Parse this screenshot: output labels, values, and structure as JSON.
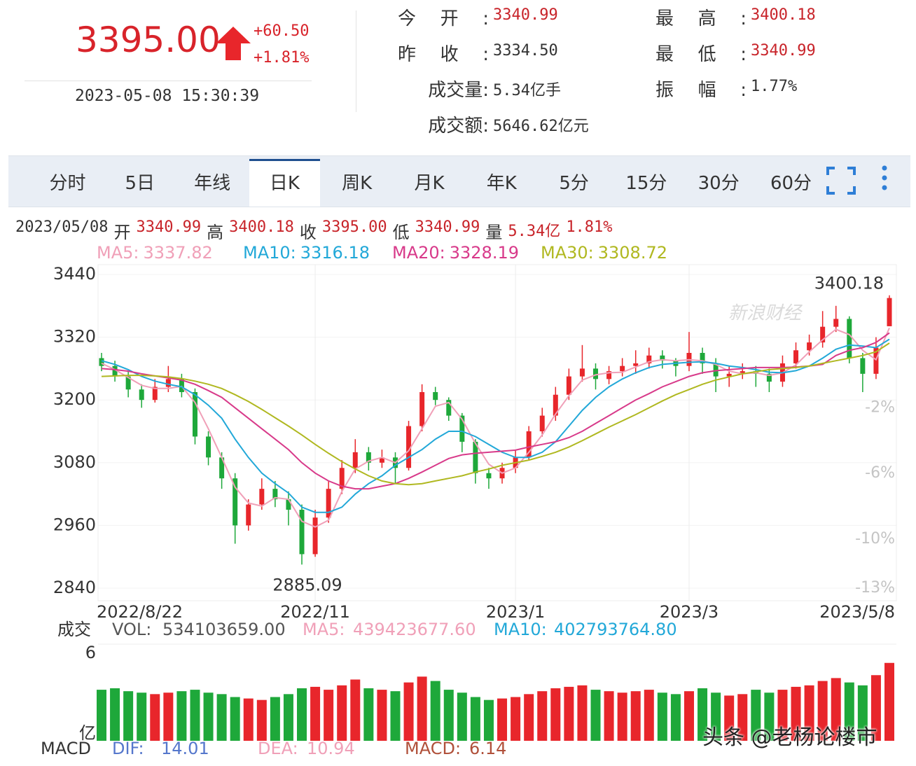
{
  "quote": {
    "price": "3395.00",
    "change": "+60.50",
    "change_pct": "+1.81%",
    "time": "2023-05-08 15:30:39",
    "color": "#d8232a"
  },
  "stats": [
    {
      "label": "今开:",
      "value": "3340.99",
      "color": "#c8242a"
    },
    {
      "label": "昨收:",
      "value": "3334.50",
      "color": "#333333"
    },
    {
      "label": "成交量:",
      "value": "5.34亿手",
      "color": "#333333"
    },
    {
      "label": "成交额:",
      "value": "5646.62亿元",
      "color": "#333333"
    },
    {
      "label": "最高:",
      "value": "3400.18",
      "color": "#c8242a"
    },
    {
      "label": "最低:",
      "value": "3340.99",
      "color": "#c8242a"
    },
    {
      "label": "振幅:",
      "value": "1.77%",
      "color": "#333333"
    }
  ],
  "tabs": [
    "分时",
    "5日",
    "年线",
    "日K",
    "周K",
    "月K",
    "年K",
    "5分",
    "15分",
    "30分",
    "60分"
  ],
  "active_tab": 3,
  "ohlc_line": {
    "date": "2023/05/08",
    "items": [
      {
        "label": "开",
        "value": "3340.99"
      },
      {
        "label": "高",
        "value": "3400.18"
      },
      {
        "label": "收",
        "value": "3395.00"
      },
      {
        "label": "低",
        "value": "3340.99"
      },
      {
        "label": "量",
        "value": "5.34亿"
      }
    ],
    "pct": "1.81%"
  },
  "chart_data": [
    {
      "type": "candlestick",
      "categories": [
        "2022/8/22",
        null,
        null,
        null,
        null,
        null,
        null,
        null,
        null,
        null,
        null,
        null,
        null,
        null,
        null,
        null,
        "2022/11",
        null,
        null,
        null,
        null,
        null,
        null,
        null,
        null,
        null,
        null,
        null,
        null,
        null,
        null,
        "2023/1",
        null,
        null,
        null,
        null,
        null,
        null,
        null,
        null,
        null,
        null,
        null,
        null,
        "2023/3",
        null,
        null,
        null,
        null,
        null,
        null,
        null,
        null,
        null,
        null,
        null,
        null,
        null,
        null,
        "2023/5/8"
      ],
      "open": [
        3280,
        3265,
        3245,
        3220,
        3200,
        3225,
        3240,
        3215,
        3130,
        3090,
        3050,
        2960,
        3000,
        3030,
        3010,
        2990,
        2905,
        2975,
        3030,
        3070,
        3100,
        3080,
        3090,
        3070,
        3150,
        3215,
        3200,
        3170,
        3120,
        3060,
        3050,
        3070,
        3090,
        3140,
        3170,
        3210,
        3245,
        3260,
        3240,
        3255,
        3265,
        3270,
        3285,
        3275,
        3265,
        3290,
        3270,
        3245,
        3250,
        3255,
        3250,
        3235,
        3270,
        3295,
        3310,
        3340,
        3355,
        3280,
        3250,
        3340.99
      ],
      "high": [
        3290,
        3275,
        3255,
        3230,
        3240,
        3265,
        3250,
        3222,
        3140,
        3100,
        3060,
        3010,
        3050,
        3045,
        3025,
        3000,
        2990,
        3045,
        3085,
        3125,
        3110,
        3105,
        3100,
        3160,
        3230,
        3225,
        3205,
        3175,
        3125,
        3070,
        3080,
        3105,
        3150,
        3185,
        3225,
        3260,
        3305,
        3270,
        3265,
        3280,
        3295,
        3300,
        3295,
        3280,
        3330,
        3300,
        3280,
        3265,
        3270,
        3265,
        3260,
        3285,
        3310,
        3325,
        3370,
        3380,
        3360,
        3290,
        3320,
        3400.18
      ],
      "low": [
        3255,
        3235,
        3205,
        3185,
        3195,
        3215,
        3205,
        3115,
        3075,
        3030,
        2925,
        2950,
        2990,
        2995,
        2960,
        2885.09,
        2900,
        2965,
        3020,
        3060,
        3065,
        3070,
        3040,
        3065,
        3140,
        3190,
        3160,
        3100,
        3040,
        3030,
        3040,
        3060,
        3085,
        3130,
        3160,
        3200,
        3235,
        3220,
        3230,
        3245,
        3250,
        3260,
        3260,
        3245,
        3255,
        3250,
        3215,
        3225,
        3240,
        3225,
        3215,
        3225,
        3260,
        3285,
        3300,
        3330,
        3270,
        3215,
        3240,
        3340.99
      ],
      "close": [
        3265,
        3245,
        3220,
        3200,
        3225,
        3240,
        3215,
        3130,
        3090,
        3050,
        2960,
        3000,
        3030,
        3010,
        2990,
        2905,
        2975,
        3030,
        3070,
        3100,
        3080,
        3090,
        3070,
        3150,
        3215,
        3200,
        3170,
        3120,
        3060,
        3050,
        3070,
        3090,
        3140,
        3170,
        3210,
        3245,
        3260,
        3240,
        3255,
        3265,
        3270,
        3285,
        3275,
        3265,
        3290,
        3270,
        3245,
        3250,
        3255,
        3250,
        3235,
        3270,
        3295,
        3310,
        3340,
        3355,
        3280,
        3250,
        3300,
        3395
      ],
      "up_color": "#e8262b",
      "down_color": "#1ea83a",
      "series": [
        {
          "name": "MA5:",
          "color": "#f0a0b8",
          "values": [
            3270,
            3258,
            3243,
            3228,
            3222,
            3222,
            3226,
            3195,
            3145,
            3090,
            3033,
            3003,
            2997,
            3013,
            3010,
            2968,
            2957,
            2970,
            3025,
            3068,
            3083,
            3090,
            3080,
            3103,
            3145,
            3188,
            3195,
            3163,
            3117,
            3077,
            3060,
            3070,
            3100,
            3133,
            3173,
            3208,
            3238,
            3248,
            3252,
            3253,
            3263,
            3273,
            3277,
            3275,
            3277,
            3275,
            3268,
            3255,
            3250,
            3252,
            3247,
            3252,
            3267,
            3292,
            3315,
            3335,
            3325,
            3295,
            3277,
            3337.82
          ]
        },
        {
          "name": "MA10:",
          "color": "#22a8d8",
          "values": [
            3275,
            3268,
            3258,
            3245,
            3236,
            3230,
            3225,
            3210,
            3190,
            3165,
            3125,
            3090,
            3060,
            3040,
            3022,
            2995,
            2985,
            2985,
            2995,
            3020,
            3040,
            3055,
            3075,
            3090,
            3105,
            3125,
            3140,
            3140,
            3130,
            3115,
            3100,
            3090,
            3090,
            3100,
            3120,
            3150,
            3180,
            3205,
            3225,
            3240,
            3252,
            3262,
            3268,
            3270,
            3272,
            3273,
            3270,
            3265,
            3262,
            3258,
            3253,
            3252,
            3256,
            3265,
            3280,
            3297,
            3305,
            3303,
            3300,
            3316.18
          ]
        },
        {
          "name": "MA20:",
          "color": "#d83a8a",
          "values": [
            3260,
            3258,
            3255,
            3250,
            3246,
            3242,
            3238,
            3230,
            3218,
            3205,
            3185,
            3165,
            3145,
            3125,
            3105,
            3080,
            3060,
            3045,
            3035,
            3030,
            3030,
            3035,
            3040,
            3050,
            3062,
            3075,
            3088,
            3095,
            3098,
            3100,
            3102,
            3104,
            3110,
            3115,
            3120,
            3128,
            3140,
            3155,
            3170,
            3185,
            3200,
            3212,
            3225,
            3235,
            3245,
            3252,
            3256,
            3258,
            3260,
            3262,
            3262,
            3262,
            3263,
            3265,
            3268,
            3285,
            3295,
            3300,
            3310,
            3328.19
          ]
        },
        {
          "name": "MA30:",
          "color": "#b0b820",
          "values": [
            3245,
            3246,
            3247,
            3247,
            3246,
            3244,
            3241,
            3236,
            3230,
            3222,
            3210,
            3197,
            3182,
            3166,
            3150,
            3133,
            3115,
            3098,
            3082,
            3068,
            3055,
            3045,
            3040,
            3038,
            3040,
            3045,
            3050,
            3055,
            3062,
            3068,
            3075,
            3080,
            3085,
            3092,
            3100,
            3110,
            3122,
            3135,
            3148,
            3160,
            3172,
            3185,
            3198,
            3210,
            3220,
            3230,
            3238,
            3244,
            3250,
            3254,
            3258,
            3260,
            3262,
            3265,
            3270,
            3275,
            3280,
            3285,
            3292,
            3308.72
          ]
        }
      ],
      "ylim": [
        2840,
        3440
      ],
      "yticks": [
        2840,
        2960,
        3080,
        3200,
        3320,
        3440
      ],
      "y2lim": [
        -13,
        6.15
      ],
      "y2ticks": [
        {
          "value": -13,
          "label": "-13%"
        },
        {
          "value": -10,
          "label": "-10%"
        },
        {
          "value": -6,
          "label": "-6%"
        },
        {
          "value": -2,
          "label": "-2%"
        }
      ],
      "watermark": "新浪财经"
    },
    {
      "type": "bar",
      "title": "成交",
      "unit": "亿",
      "values": [
        3.5,
        3.6,
        3.4,
        3.3,
        3.2,
        3.3,
        3.4,
        3.5,
        3.3,
        3.2,
        3.0,
        2.9,
        2.8,
        3.0,
        3.2,
        3.6,
        3.7,
        3.5,
        3.8,
        4.2,
        3.6,
        3.5,
        3.4,
        4.0,
        4.4,
        4.1,
        3.5,
        3.3,
        3.0,
        2.8,
        2.9,
        3.0,
        3.2,
        3.4,
        3.6,
        3.7,
        3.8,
        3.5,
        3.4,
        3.3,
        3.4,
        3.5,
        3.3,
        3.2,
        3.4,
        3.6,
        3.3,
        3.1,
        3.2,
        3.5,
        3.3,
        3.5,
        3.7,
        3.8,
        4.1,
        4.3,
        4.0,
        3.8,
        4.5,
        5.34
      ],
      "ylim": [
        0,
        6
      ],
      "yticks": [
        6
      ],
      "legend": [
        {
          "label": "VOL:",
          "value": "534103659.00",
          "color": "#555555"
        },
        {
          "label": "MA5:",
          "value": "439423677.60",
          "color": "#f0a0b8"
        },
        {
          "label": "MA10:",
          "value": "402793764.80",
          "color": "#22a8d8"
        }
      ]
    }
  ],
  "macd": {
    "title": "MACD",
    "items": [
      {
        "label": "DIF:",
        "value": "14.01",
        "color": "#5577cc"
      },
      {
        "label": "DEA:",
        "value": "10.94",
        "color": "#f0a0b8"
      },
      {
        "label": "MACD:",
        "value": "6.14",
        "color": "#b0503a"
      }
    ]
  },
  "watermark": "头条 @老杨论楼市"
}
